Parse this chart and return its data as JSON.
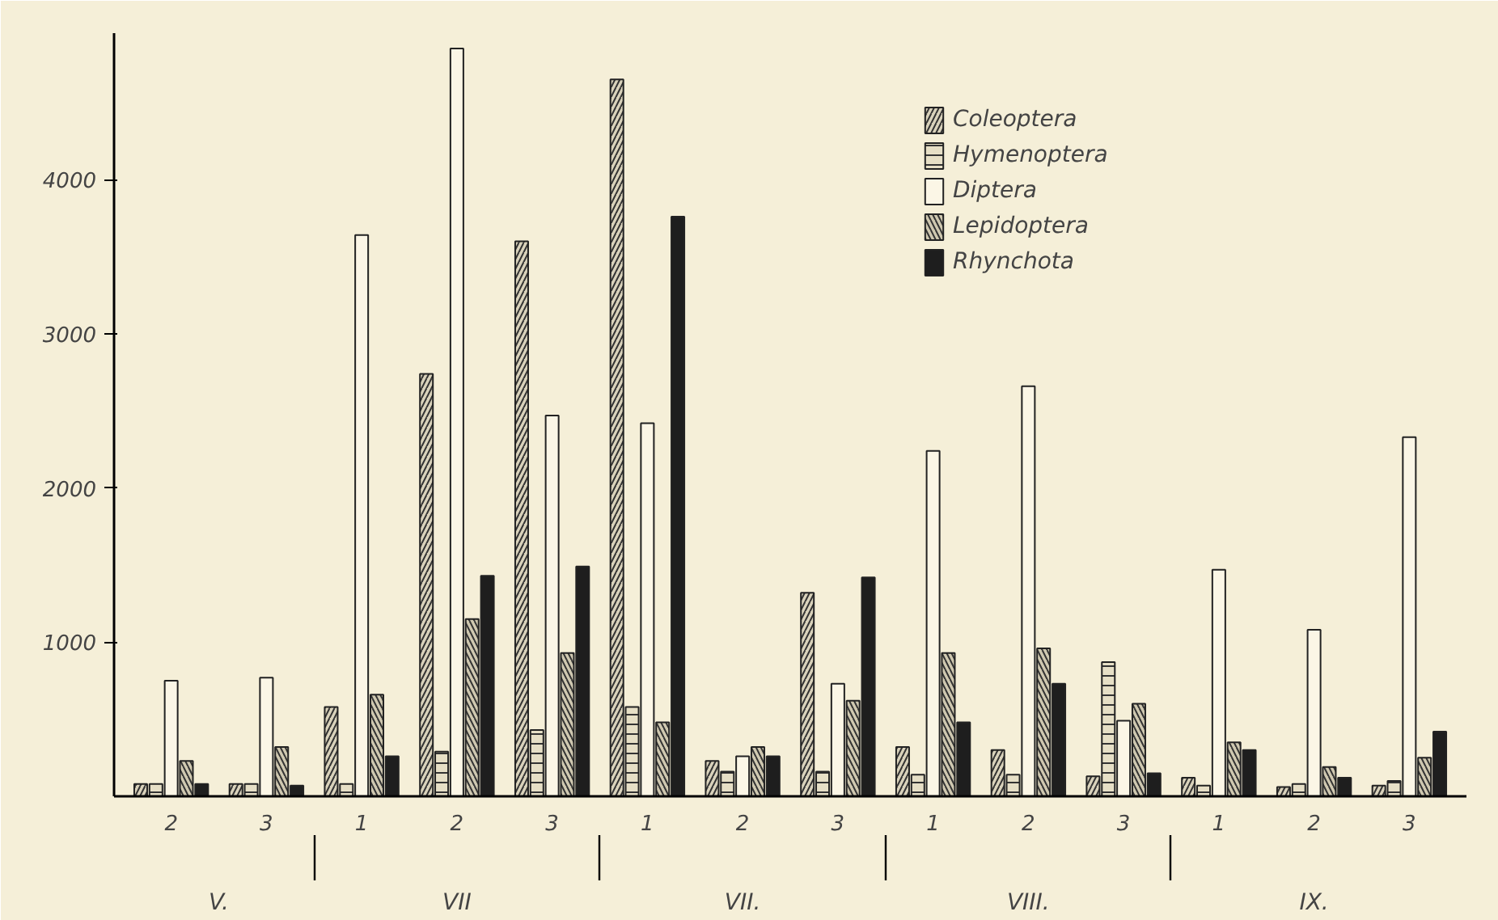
{
  "chart_data": {
    "type": "bar",
    "categories": [
      "2",
      "3",
      "1",
      "2",
      "3",
      "1",
      "2",
      "3",
      "1",
      "2",
      "3",
      "1",
      "2",
      "3"
    ],
    "annotations": [
      "V.",
      "VII",
      "VII.",
      "VIII.",
      "IX."
    ],
    "ylim": [
      0,
      4950
    ],
    "yticks": [
      1000,
      2000,
      3000,
      4000
    ],
    "legend": "top",
    "grid": false,
    "series": [
      {
        "name": "Coleoptera",
        "color": "#d9d2bb",
        "values": [
          80,
          80,
          580,
          2740,
          3600,
          4650,
          230,
          1320,
          320,
          300,
          130,
          120,
          60,
          70
        ]
      },
      {
        "name": "Hymenoptera",
        "color": "#e6dfc6",
        "values": [
          80,
          80,
          80,
          290,
          430,
          580,
          160,
          160,
          140,
          140,
          870,
          70,
          80,
          100
        ]
      },
      {
        "name": "Diptera",
        "color": "#fbf6e6",
        "values": [
          750,
          770,
          3640,
          4850,
          2470,
          2420,
          260,
          730,
          2240,
          2660,
          490,
          1470,
          1080,
          2330
        ]
      },
      {
        "name": "Lepidoptera",
        "color": "#cfc8b0",
        "values": [
          230,
          320,
          660,
          1150,
          930,
          480,
          320,
          620,
          930,
          960,
          600,
          350,
          190,
          250
        ]
      },
      {
        "name": "Rhynchota",
        "color": "#1e1e1e",
        "values": [
          80,
          70,
          260,
          1430,
          1490,
          3760,
          260,
          1420,
          480,
          730,
          150,
          300,
          120,
          420
        ]
      }
    ]
  }
}
